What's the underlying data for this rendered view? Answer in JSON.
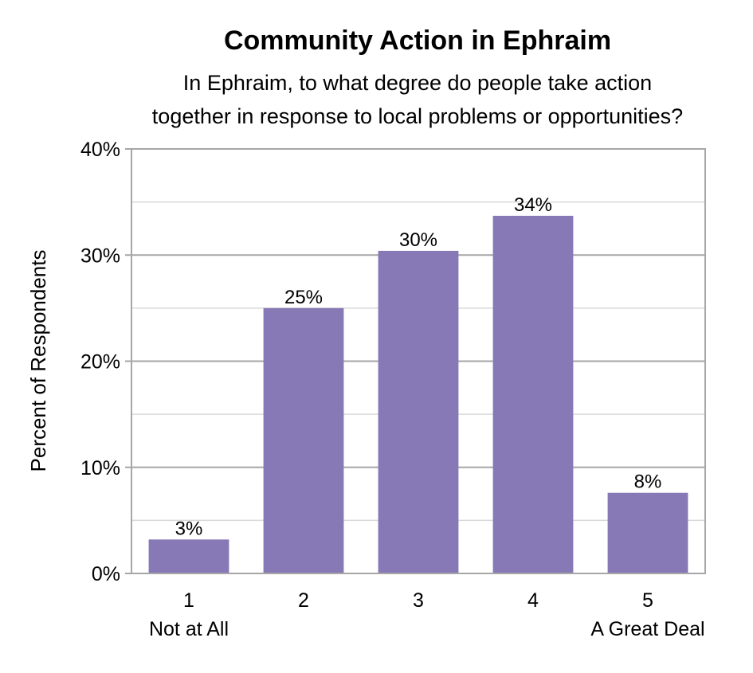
{
  "chart_data": {
    "type": "bar",
    "title": "Community Action in Ephraim",
    "subtitle_lines": [
      "In Ephraim, to what degree do people take action",
      "together in response to local problems or opportunities?"
    ],
    "ylabel": "Percent of Respondents",
    "xlabel": "",
    "categories": [
      "1",
      "2",
      "3",
      "4",
      "5"
    ],
    "category_sublabels": [
      "Not at All",
      "",
      "",
      "",
      "A Great Deal"
    ],
    "values": [
      3.2,
      25.0,
      30.4,
      33.7,
      7.6
    ],
    "data_labels": [
      "3%",
      "25%",
      "30%",
      "34%",
      "8%"
    ],
    "ylim": [
      0,
      40
    ],
    "yticks": [
      0,
      10,
      20,
      30,
      40
    ],
    "ytick_labels": [
      "0%",
      "10%",
      "20%",
      "30%",
      "40%"
    ],
    "grid": true,
    "legend": "none",
    "colors": {
      "bar": "#8779b5",
      "major_grid": "#a6a6a6",
      "minor_grid": "#d9d9d9",
      "frame": "#a6a6a6"
    }
  }
}
